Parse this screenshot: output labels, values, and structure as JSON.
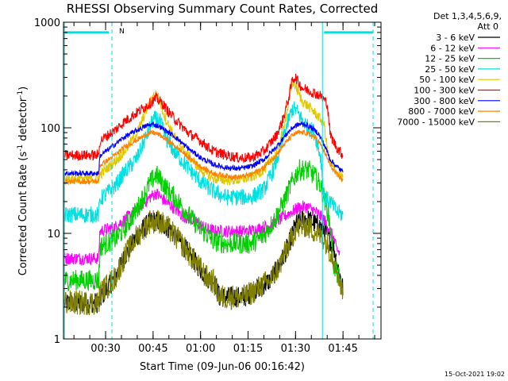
{
  "chart_data": {
    "type": "line",
    "title": "RHESSI Observing Summary Count Rates, Corrected",
    "xlabel": "Start Time (09-Jun-06 00:16:42)",
    "ylabel_parts": {
      "before": "Corrected Count Rate (s",
      "sup1": "-1",
      "middle": " detector",
      "sup2": "-1",
      "after": ")"
    },
    "y_scale": "log",
    "ylim": [
      1,
      1000
    ],
    "xlim_minutes": [
      16.7,
      117
    ],
    "y_ticks": [
      {
        "value": 1,
        "label": "1"
      },
      {
        "value": 10,
        "label": "10"
      },
      {
        "value": 100,
        "label": "100"
      },
      {
        "value": 1000,
        "label": "1000"
      }
    ],
    "x_ticks": [
      {
        "value": 30,
        "label": "00:30"
      },
      {
        "value": 45,
        "label": "00:45"
      },
      {
        "value": 60,
        "label": "01:00"
      },
      {
        "value": 75,
        "label": "01:15"
      },
      {
        "value": 90,
        "label": "01:30"
      },
      {
        "value": 105,
        "label": "01:45"
      }
    ],
    "legend_header": [
      "Det 1,3,4,5,6,9,",
      "Att 0"
    ],
    "legend_placement": "right",
    "footer_date": "15-Oct-2021 19:02",
    "marker_label": "N",
    "vertical_lines": [
      {
        "x": 17.0,
        "style": "solid",
        "color": "#00e0e0"
      },
      {
        "x": 32.0,
        "style": "dashed",
        "color": "#00e0e0"
      },
      {
        "x": 98.5,
        "style": "solid",
        "color": "#00e0e0"
      },
      {
        "x": 114.5,
        "style": "dashed",
        "color": "#00e0e0"
      }
    ],
    "flag_bars": [
      {
        "x": [
          17,
          31
        ],
        "y": 800,
        "color": "#00e0e0"
      },
      {
        "x": [
          99,
          114.5
        ],
        "y": 800,
        "color": "#00e0e0"
      }
    ],
    "series": [
      {
        "name": "3 - 6 keV",
        "color": "#000000",
        "noise": 0.1,
        "x": [
          17,
          28,
          29,
          33,
          36,
          40,
          44,
          47,
          50,
          54,
          58,
          62,
          64,
          66,
          70,
          74,
          78,
          82,
          85,
          88,
          90,
          93,
          95,
          97,
          99,
          102,
          104,
          105
        ],
        "y": [
          2.2,
          2.2,
          2.6,
          3.8,
          6,
          9.5,
          13,
          13,
          11,
          8,
          5.5,
          3.8,
          3.6,
          2.5,
          2.5,
          2.5,
          3,
          3.6,
          5,
          8,
          12,
          14,
          13,
          12,
          11,
          7.5,
          4,
          3
        ]
      },
      {
        "name": "6 - 12 keV",
        "color": "#ff00ff",
        "noise": 0.06,
        "x": [
          17,
          27.8,
          28.2,
          33,
          36,
          40,
          44,
          46,
          48,
          51,
          54,
          58,
          60,
          62,
          65,
          70,
          75,
          78,
          82,
          85,
          88,
          91,
          93,
          95,
          97,
          99,
          100,
          102,
          103,
          104
        ],
        "y": [
          5.8,
          5.8,
          10.5,
          11.5,
          13.5,
          17,
          22,
          24,
          21,
          18,
          15,
          13,
          12,
          11,
          10.5,
          10.5,
          10.5,
          11,
          12,
          13.5,
          15.5,
          17.5,
          18,
          17,
          15.5,
          13.5,
          12,
          9,
          7,
          6.5
        ]
      },
      {
        "name": "12 - 25 keV",
        "color": "#00d000",
        "noise": 0.1,
        "x": [
          17,
          27.8,
          28.3,
          33,
          36,
          40,
          44,
          46,
          48,
          50,
          53,
          56,
          60,
          64,
          68,
          72,
          76,
          80,
          83,
          86,
          89,
          91,
          94,
          96,
          98,
          100,
          101,
          102,
          104
        ],
        "y": [
          3.6,
          3.6,
          7.5,
          8.8,
          11,
          17,
          30,
          36,
          30,
          25,
          20,
          15,
          11,
          8.5,
          8,
          8,
          8,
          9.5,
          13,
          19,
          31,
          40,
          40,
          35,
          28,
          17,
          12,
          5,
          3.6
        ]
      },
      {
        "name": "25 - 50 keV",
        "color": "#00e0e0",
        "noise": 0.08,
        "x": [
          17,
          27.8,
          28.2,
          33,
          36,
          40,
          43,
          45,
          47,
          49,
          52,
          56,
          60,
          64,
          68,
          72,
          76,
          80,
          83,
          85,
          87,
          89,
          90,
          92,
          94,
          96,
          98,
          99,
          101,
          103,
          105
        ],
        "y": [
          15,
          15,
          21,
          28,
          38,
          52,
          85,
          120,
          120,
          80,
          58,
          42,
          31,
          25,
          22,
          22,
          22,
          26,
          40,
          60,
          100,
          150,
          150,
          120,
          100,
          90,
          52,
          22,
          20,
          16,
          15
        ]
      },
      {
        "name": "50 - 100 keV",
        "color": "#e0c800",
        "noise": 0.05,
        "x": [
          17,
          27.8,
          28.2,
          33,
          36,
          40,
          43,
          45,
          46,
          47,
          49,
          52,
          56,
          60,
          64,
          68,
          72,
          76,
          80,
          84,
          86,
          88,
          89,
          90,
          92,
          94,
          96,
          99,
          100,
          101,
          103,
          105
        ],
        "y": [
          33,
          33,
          36,
          48,
          60,
          90,
          150,
          200,
          210,
          185,
          120,
          80,
          55,
          40,
          33,
          32,
          32,
          34,
          40,
          58,
          95,
          180,
          270,
          250,
          180,
          160,
          140,
          110,
          65,
          45,
          38,
          33
        ]
      },
      {
        "name": "100 - 300 keV",
        "color": "#ff0000",
        "noise": 0.05,
        "x": [
          17,
          27.8,
          28.2,
          33,
          36,
          40,
          44,
          46,
          48,
          50,
          52,
          56,
          60,
          64,
          68,
          72,
          76,
          80,
          84,
          86,
          88,
          89,
          90,
          92,
          95,
          98,
          100,
          101,
          103,
          105
        ],
        "y": [
          55,
          55,
          75,
          95,
          115,
          140,
          170,
          190,
          170,
          140,
          120,
          90,
          75,
          60,
          55,
          52,
          52,
          60,
          85,
          120,
          200,
          290,
          300,
          240,
          220,
          200,
          170,
          85,
          65,
          55
        ]
      },
      {
        "name": "300 - 800 keV",
        "color": "#0000ff",
        "noise": 0.025,
        "x": [
          17,
          27.8,
          28.2,
          33,
          36,
          40,
          43,
          45,
          47,
          49,
          52,
          56,
          60,
          64,
          68,
          72,
          76,
          80,
          84,
          87,
          89,
          91,
          93,
          95,
          97,
          99,
          101,
          103,
          105
        ],
        "y": [
          37,
          37,
          54,
          70,
          82,
          95,
          105,
          108,
          103,
          94,
          82,
          64,
          52,
          45,
          42,
          41,
          43,
          50,
          66,
          86,
          100,
          108,
          108,
          100,
          90,
          70,
          50,
          43,
          38
        ]
      },
      {
        "name": "800 - 7000 keV",
        "color": "#ff8000",
        "noise": 0.025,
        "x": [
          17,
          27.8,
          28.2,
          33,
          36,
          40,
          43,
          45,
          47,
          49,
          52,
          56,
          60,
          64,
          68,
          72,
          76,
          80,
          84,
          87,
          89,
          91,
          93,
          95,
          97,
          99,
          101,
          103,
          105
        ],
        "y": [
          31,
          31,
          44,
          55,
          66,
          77,
          87,
          90,
          86,
          78,
          67,
          53,
          43,
          37,
          35,
          34,
          36,
          42,
          56,
          73,
          85,
          90,
          90,
          85,
          77,
          60,
          44,
          36,
          32
        ]
      },
      {
        "name": "7000 - 15000 keV",
        "color": "#808000",
        "noise": 0.12,
        "x": [
          17,
          27.8,
          28.2,
          33,
          36,
          40,
          44,
          47,
          50,
          54,
          58,
          62,
          64,
          66,
          70,
          74,
          78,
          82,
          85,
          88,
          90,
          93,
          95,
          97,
          99,
          102,
          104,
          105
        ],
        "y": [
          2.2,
          2.2,
          2.7,
          3.8,
          6,
          9.5,
          13,
          13,
          11,
          8,
          5.5,
          3.8,
          3.5,
          2.5,
          2.5,
          2.5,
          3,
          3.6,
          5,
          8,
          11,
          12,
          11,
          10,
          9,
          6,
          3.5,
          2.6
        ]
      }
    ]
  }
}
